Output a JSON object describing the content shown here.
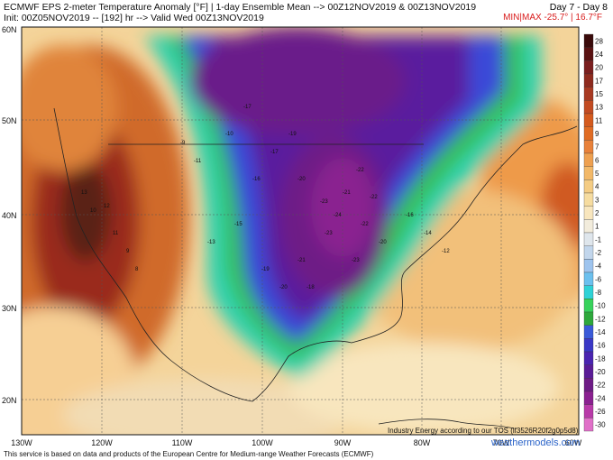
{
  "header": {
    "line1": "ECMWF EPS 2-meter Temperature Anomaly [°F] | 1-day Ensemble Mean --> 00Z12NOV2019 & 00Z13NOV2019",
    "line1_right": "Day 7 - Day 8",
    "line2": "Init: 00Z05NOV2019 -- [192] hr --> Valid Wed 00Z13NOV2019",
    "minmax_label": "MIN|MAX",
    "minmax_values": "-25.7° | 16.7°F"
  },
  "footer": {
    "disclaimer": "This service is based on data and products of the European Centre for Medium-range Weather Forecasts (ECMWF)",
    "credit": "Industry Energy according to our TOS (lf3526R20f2g0p5d8)",
    "site": "weathermodels.com"
  },
  "axes": {
    "lat_labels": [
      "60N",
      "50N",
      "40N",
      "30N",
      "20N"
    ],
    "lon_labels": [
      "130W",
      "120W",
      "110W",
      "100W",
      "90W",
      "80W",
      "70W",
      "60W"
    ]
  },
  "colorbar": {
    "labels": [
      "28",
      "24",
      "20",
      "17",
      "15",
      "13",
      "11",
      "9",
      "7",
      "6",
      "5",
      "4",
      "3",
      "2",
      "1",
      "-1",
      "-2",
      "-4",
      "-6",
      "-8",
      "-10",
      "-12",
      "-14",
      "-16",
      "-18",
      "-20",
      "-22",
      "-24",
      "-26",
      "-30"
    ],
    "colors": [
      "#3a0a0a",
      "#5a1212",
      "#7a1e1e",
      "#8e2a1e",
      "#a83a22",
      "#c24b22",
      "#d45a1e",
      "#e06c24",
      "#e8813a",
      "#eea050",
      "#f2b868",
      "#f4cc84",
      "#f6dca0",
      "#f8e6be",
      "#f2ecdc",
      "#dfe6ec",
      "#c2d6ec",
      "#9ec4ee",
      "#6cc0ee",
      "#2fd2d6",
      "#38d25c",
      "#2ea83c",
      "#3a5ad8",
      "#3a38c6",
      "#4a24b0",
      "#5a1c96",
      "#6e1c86",
      "#8a2090",
      "#b83aa8",
      "#e070c8"
    ]
  },
  "map_values": [
    {
      "t": "-17"
    },
    {
      "t": "-20"
    },
    {
      "t": "-23"
    },
    {
      "t": "-21"
    },
    {
      "t": "-23"
    },
    {
      "t": "-22"
    },
    {
      "t": "-23"
    },
    {
      "t": "-21"
    },
    {
      "t": "-20"
    },
    {
      "t": "-19"
    },
    {
      "t": "-15"
    },
    {
      "t": "-13"
    },
    {
      "t": "-11"
    },
    {
      "t": "-9"
    },
    {
      "t": "-10"
    },
    {
      "t": "-16"
    },
    {
      "t": "13"
    },
    {
      "t": "10"
    },
    {
      "t": "12"
    },
    {
      "t": "11"
    },
    {
      "t": "9"
    },
    {
      "t": "8"
    },
    {
      "t": "-18"
    },
    {
      "t": "-24"
    },
    {
      "t": "-22"
    },
    {
      "t": "-17"
    },
    {
      "t": "-19"
    },
    {
      "t": "-20"
    },
    {
      "t": "-16"
    },
    {
      "t": "-14"
    },
    {
      "t": "-12"
    },
    {
      "t": "-22"
    }
  ]
}
